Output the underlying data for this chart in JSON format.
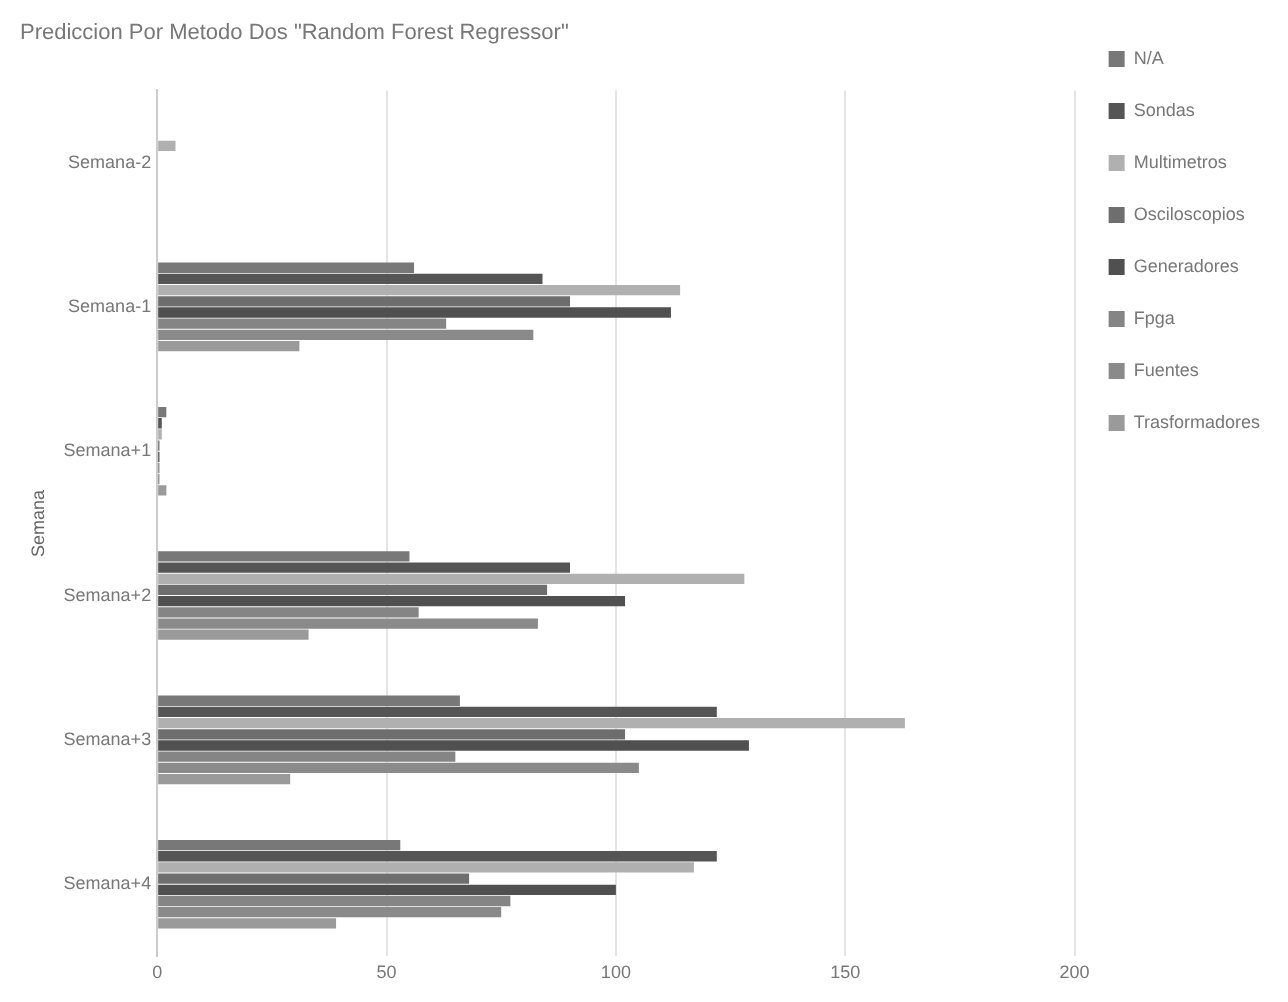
{
  "chart_data": {
    "type": "bar",
    "orientation": "horizontal",
    "title": "Prediccion Por Metodo Dos \"Random Forest Regressor\"",
    "ylabel": "Semana",
    "categories": [
      "Semana-2",
      "Semana-1",
      "Semana+1",
      "Semana+2",
      "Semana+3",
      "Semana+4"
    ],
    "series": [
      {
        "name": "N/A",
        "color": "#787878",
        "values": [
          0,
          56,
          2,
          55,
          66,
          53
        ]
      },
      {
        "name": "Sondas",
        "color": "#555555",
        "values": [
          0,
          84,
          1,
          90,
          122,
          122
        ]
      },
      {
        "name": "Multimetros",
        "color": "#b0b0b0",
        "values": [
          4,
          114,
          1,
          128,
          163,
          117
        ]
      },
      {
        "name": "Osciloscopios",
        "color": "#6e6e6e",
        "values": [
          0,
          90,
          0.5,
          85,
          102,
          68
        ]
      },
      {
        "name": "Generadores",
        "color": "#505050",
        "values": [
          0,
          112,
          0.5,
          102,
          129,
          100
        ]
      },
      {
        "name": "Fpga",
        "color": "#858585",
        "values": [
          0,
          63,
          0.5,
          57,
          65,
          77
        ]
      },
      {
        "name": "Fuentes",
        "color": "#8a8a8a",
        "values": [
          0,
          82,
          0.5,
          83,
          105,
          75
        ]
      },
      {
        "name": "Trasformadores",
        "color": "#9a9a9a",
        "values": [
          0,
          31,
          2,
          33,
          29,
          39
        ]
      }
    ],
    "xlim": [
      0,
      200
    ],
    "xticks": [
      0,
      50,
      100,
      150,
      200
    ],
    "grid": "x",
    "legend": "right"
  }
}
